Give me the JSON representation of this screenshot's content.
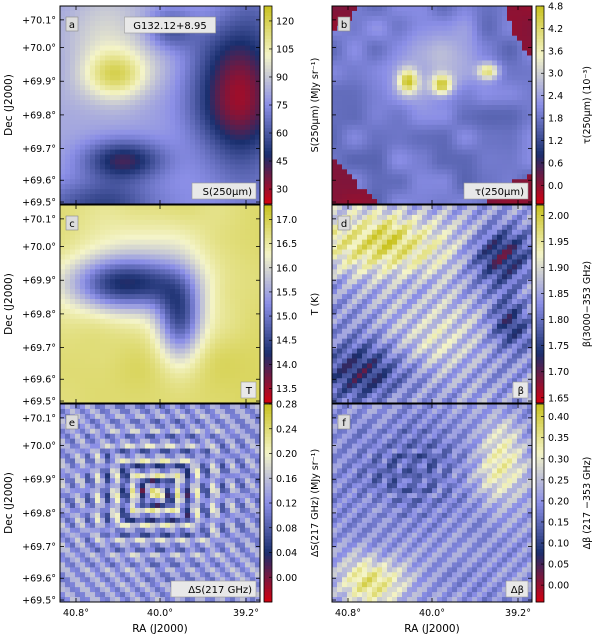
{
  "figure": {
    "x_axis_label": "RA (J2000)",
    "y_axis_label": "Dec (J2000)",
    "x_ticks": [
      "40.8°",
      "40.0°",
      "39.2°"
    ],
    "y_ticks": [
      "+70.1°",
      "+70.0°",
      "+69.9°",
      "+69.8°",
      "+69.7°",
      "+69.6°",
      "+69.5°"
    ],
    "colormap": {
      "low": "#d4000f",
      "mid_low": "#1a2f6e",
      "mid": "#8a8ee6",
      "mid_high": "#f4f4c8",
      "high": "#c9c21d"
    }
  },
  "chart_data": [
    {
      "type": "heatmap",
      "panel_letter": "a",
      "annotation": "G132.12+8.95",
      "map_label": "S(250μm)",
      "colorbar_label": "S(250μm) (MJy sr⁻¹)",
      "colorbar_ticks": [
        "120",
        "105",
        "90",
        "75",
        "60",
        "45",
        "30"
      ],
      "colorbar_range": [
        22,
        128
      ],
      "xlim": [
        40.8,
        39.2
      ],
      "ylim": [
        69.5,
        70.1
      ]
    },
    {
      "type": "heatmap",
      "panel_letter": "b",
      "annotation": "",
      "map_label": "τ(250μm)",
      "colorbar_label": "τ(250μm) (10⁻³)",
      "colorbar_ticks": [
        "4.8",
        "4.2",
        "3.6",
        "3.0",
        "2.4",
        "1.8",
        "1.2",
        "0.6",
        "0.0"
      ],
      "colorbar_range": [
        -0.5,
        4.8
      ],
      "xlim": [
        40.8,
        39.2
      ],
      "ylim": [
        69.5,
        70.1
      ]
    },
    {
      "type": "heatmap",
      "panel_letter": "c",
      "annotation": "",
      "map_label": "T",
      "colorbar_label": "T (K)",
      "colorbar_ticks": [
        "17.0",
        "16.5",
        "16.0",
        "15.5",
        "15.0",
        "14.5",
        "14.0",
        "13.5"
      ],
      "colorbar_range": [
        13.2,
        17.3
      ],
      "xlim": [
        40.8,
        39.2
      ],
      "ylim": [
        69.5,
        70.1
      ]
    },
    {
      "type": "heatmap",
      "panel_letter": "d",
      "annotation": "",
      "map_label": "β",
      "colorbar_label": "β(3000−353 GHz)",
      "colorbar_ticks": [
        "2.00",
        "1.95",
        "1.90",
        "1.85",
        "1.80",
        "1.75",
        "1.70",
        "1.65"
      ],
      "colorbar_range": [
        1.64,
        2.02
      ],
      "xlim": [
        40.8,
        39.2
      ],
      "ylim": [
        69.5,
        70.1
      ]
    },
    {
      "type": "heatmap",
      "panel_letter": "e",
      "annotation": "",
      "map_label": "ΔS(217 GHz)",
      "colorbar_label": "ΔS(217 GHz) (MJy sr⁻¹)",
      "colorbar_ticks": [
        "0.28",
        "0.24",
        "0.20",
        "0.16",
        "0.12",
        "0.08",
        "0.04",
        "0.00"
      ],
      "colorbar_range": [
        -0.04,
        0.28
      ],
      "xlim": [
        40.8,
        39.2
      ],
      "ylim": [
        69.5,
        70.1
      ]
    },
    {
      "type": "heatmap",
      "panel_letter": "f",
      "annotation": "",
      "map_label": "Δβ",
      "colorbar_label": "Δβ (217 −353 GHz)",
      "colorbar_ticks": [
        "0.40",
        "0.35",
        "0.30",
        "0.25",
        "0.20",
        "0.15",
        "0.10",
        "0.05",
        "0.00"
      ],
      "colorbar_range": [
        -0.04,
        0.43
      ],
      "xlim": [
        40.8,
        39.2
      ],
      "ylim": [
        69.5,
        70.1
      ]
    }
  ]
}
